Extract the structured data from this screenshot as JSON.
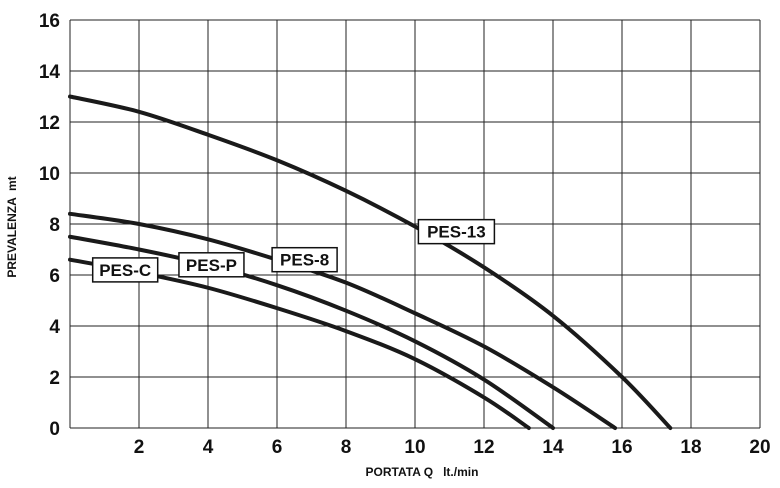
{
  "chart_data": {
    "type": "line",
    "xlabel": "PORTATA Q   lt./min",
    "ylabel": "PREVALENZA  mt",
    "xlim": [
      0,
      20
    ],
    "ylim": [
      0,
      16
    ],
    "xticks": [
      "",
      "2",
      "4",
      "6",
      "8",
      "10",
      "12",
      "14",
      "16",
      "18",
      "20"
    ],
    "yticks": [
      "0",
      "2",
      "4",
      "6",
      "8",
      "10",
      "12",
      "14",
      "16"
    ],
    "grid": true,
    "series": [
      {
        "name": "PES-13",
        "x": [
          0,
          2,
          4,
          6,
          8,
          10,
          12,
          14,
          16,
          17.4
        ],
        "y": [
          13.0,
          12.4,
          11.5,
          10.5,
          9.3,
          7.9,
          6.3,
          4.4,
          2.0,
          0.0
        ]
      },
      {
        "name": "PES-8",
        "x": [
          0,
          2,
          4,
          6,
          8,
          10,
          12,
          14,
          15.8
        ],
        "y": [
          8.4,
          8.0,
          7.4,
          6.6,
          5.7,
          4.5,
          3.2,
          1.6,
          0.0
        ]
      },
      {
        "name": "PES-P",
        "x": [
          0,
          2,
          4,
          6,
          8,
          10,
          12,
          14.0
        ],
        "y": [
          7.5,
          7.0,
          6.4,
          5.6,
          4.6,
          3.4,
          1.9,
          0.0
        ]
      },
      {
        "name": "PES-C",
        "x": [
          0,
          2,
          4,
          6,
          8,
          10,
          12,
          13.3
        ],
        "y": [
          6.6,
          6.1,
          5.5,
          4.7,
          3.8,
          2.7,
          1.2,
          0.0
        ]
      }
    ],
    "annotations": [
      {
        "text": "PES-13",
        "x": 11.2,
        "y": 7.7
      },
      {
        "text": "PES-8",
        "x": 6.8,
        "y": 6.6
      },
      {
        "text": "PES-P",
        "x": 4.1,
        "y": 6.4
      },
      {
        "text": "PES-C",
        "x": 1.6,
        "y": 6.2
      }
    ]
  }
}
